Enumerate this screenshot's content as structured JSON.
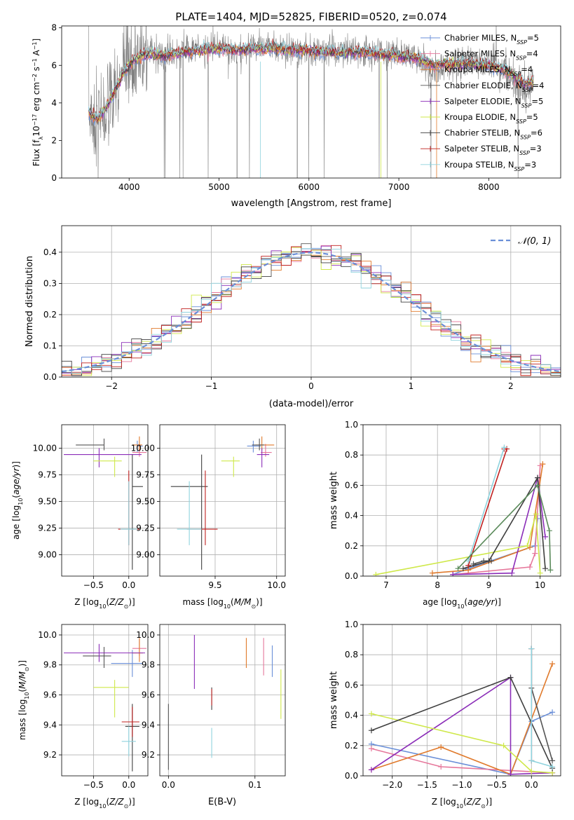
{
  "figure_title": "PLATE=1404, MJD=52825, FIBERID=0520, z=0.074",
  "colors": {
    "Chabrier MILES": "#6a8fd8",
    "Salpeter MILES": "#e6779b",
    "Kroupa MILES": "#e07a2c",
    "Chabrier ELODIE": "#555555",
    "Salpeter ELODIE": "#8b2db8",
    "Kroupa ELODIE": "#cfe84a",
    "Chabrier STELIB": "#3f3f3f",
    "Salpeter STELIB": "#c0201f",
    "Kroupa STELIB": "#8fd3de",
    "mass_weight_extra": "#5a8a5a"
  },
  "chart_data": [
    {
      "id": "spectrum",
      "type": "line",
      "xlabel": "wavelength [Angstrom, rest frame]",
      "ylabel": "Flux [f_λ 10^-17 erg cm^-2 s^-1 A^-1]",
      "xlim": [
        3250,
        8800
      ],
      "ylim": [
        0,
        8.1
      ],
      "xticks": [
        4000,
        5000,
        6000,
        7000,
        8000
      ],
      "yticks": [
        0,
        2,
        4,
        6,
        8
      ],
      "grid": false,
      "legend_position": "right",
      "legend": [
        {
          "name": "Chabrier MILES",
          "nssp": "5"
        },
        {
          "name": "Salpeter MILES",
          "nssp": "4"
        },
        {
          "name": "Kroupa MILES",
          "nssp": "4"
        },
        {
          "name": "Chabrier ELODIE",
          "nssp": "4"
        },
        {
          "name": "Salpeter ELODIE",
          "nssp": "5"
        },
        {
          "name": "Kroupa ELODIE",
          "nssp": "5"
        },
        {
          "name": "Chabrier STELIB",
          "nssp": "6"
        },
        {
          "name": "Salpeter STELIB",
          "nssp": "3"
        },
        {
          "name": "Kroupa STELIB",
          "nssp": "3"
        }
      ],
      "data_continuum": {
        "x": [
          3550,
          3650,
          3750,
          3850,
          3950,
          4050,
          4200,
          4400,
          4600,
          4800,
          5000,
          5200,
          5400,
          5600,
          5800,
          6000,
          6200,
          6400,
          6600,
          6800,
          7000,
          7200,
          7400,
          7600,
          7800,
          8000,
          8200,
          8400,
          8500
        ],
        "y": [
          3.4,
          3.0,
          3.6,
          4.6,
          5.6,
          6.2,
          6.7,
          6.4,
          6.8,
          6.9,
          7.0,
          6.8,
          7.0,
          7.0,
          6.8,
          6.9,
          6.8,
          6.7,
          6.8,
          6.6,
          6.6,
          6.4,
          5.6,
          6.0,
          6.2,
          6.0,
          5.6,
          4.8,
          5.0
        ]
      },
      "model_continuum": {
        "x": [
          3550,
          3650,
          3750,
          3850,
          3950,
          4050,
          4200,
          4400,
          4600,
          4800,
          5000,
          5200,
          5400,
          5600,
          5800,
          6000,
          6200,
          6400,
          6600,
          6800,
          7000,
          7200,
          7400,
          7600,
          7800,
          8000,
          8200,
          8400,
          8500
        ],
        "y": [
          3.5,
          3.1,
          3.8,
          4.7,
          5.7,
          6.3,
          6.6,
          6.5,
          6.7,
          6.8,
          6.9,
          6.8,
          6.9,
          6.9,
          6.8,
          6.8,
          6.7,
          6.7,
          6.7,
          6.6,
          6.5,
          6.4,
          6.0,
          6.1,
          6.1,
          6.0,
          5.7,
          5.0,
          5.1
        ]
      }
    },
    {
      "id": "residuals",
      "type": "histogram",
      "xlabel": "(data-model)/error",
      "ylabel": "Normed distribution",
      "xlim": [
        -2.5,
        2.5
      ],
      "ylim": [
        0,
        0.485
      ],
      "xticks": [
        -2,
        -1,
        0,
        1,
        2
      ],
      "yticks": [
        0.0,
        0.1,
        0.2,
        0.3,
        0.4
      ],
      "grid": true,
      "legend_label": "N(0, 1)",
      "bin_width": 0.1,
      "gaussian": {
        "mean": 0,
        "sigma": 1
      }
    },
    {
      "id": "age_vs_Z",
      "type": "errorbar",
      "xlabel": "Z [log10(Z/Z⊙)]",
      "ylabel": "age [log10(age/yr)]",
      "xlim": [
        -0.95,
        0.27
      ],
      "ylim": [
        8.8,
        10.22
      ],
      "xticks": [
        -0.5,
        0.0
      ],
      "yticks": [
        9.0,
        9.25,
        9.5,
        9.75,
        10.0
      ],
      "points": [
        {
          "x": 0.12,
          "y": 10.02,
          "xerr": [
            0.0,
            0.08
          ],
          "yerr": [
            0.06,
            0.05
          ]
        },
        {
          "x": 0.15,
          "y": 9.96,
          "xerr": [
            0.1,
            0.1
          ],
          "yerr": [
            0.04,
            0.08
          ]
        },
        {
          "x": 0.15,
          "y": 10.03,
          "xerr": [
            0.1,
            0.04
          ],
          "yerr": [
            0.05,
            0.08
          ]
        },
        {
          "x": -0.35,
          "y": 10.03,
          "xerr": [
            0.4,
            0.0
          ],
          "yerr": [
            0.05,
            0.06
          ]
        },
        {
          "x": -0.42,
          "y": 9.94,
          "xerr": [
            0.5,
            0.6
          ],
          "yerr": [
            0.12,
            0.06
          ]
        },
        {
          "x": -0.2,
          "y": 9.88,
          "xerr": [
            0.3,
            0.1
          ],
          "yerr": [
            0.15,
            0.04
          ]
        },
        {
          "x": 0.05,
          "y": 9.64,
          "xerr": [
            0.0,
            0.15
          ],
          "yerr": [
            0.78,
            0.3
          ]
        },
        {
          "x": 0.0,
          "y": 9.24,
          "xerr": [
            0.15,
            0.15
          ],
          "yerr": [
            0.15,
            0.55
          ]
        },
        {
          "x": 0.0,
          "y": 9.24,
          "xerr": [
            0.12,
            0.12
          ],
          "yerr": [
            0.15,
            0.45
          ]
        }
      ]
    },
    {
      "id": "age_vs_mass",
      "type": "errorbar",
      "xlabel": "mass [log10(M/M⊙)]",
      "ylabel": "",
      "xlim": [
        9.05,
        10.07
      ],
      "ylim": [
        8.8,
        10.22
      ],
      "xticks": [
        9.5,
        10.0
      ],
      "yticks": [
        9.0,
        9.25,
        9.5,
        9.75,
        10.0
      ],
      "points": [
        {
          "x": 9.81,
          "y": 10.02,
          "xerr": [
            0.05,
            0.06
          ],
          "yerr": [
            0.06,
            0.05
          ]
        },
        {
          "x": 9.91,
          "y": 9.96,
          "xerr": [
            0.04,
            0.05
          ],
          "yerr": [
            0.04,
            0.08
          ]
        },
        {
          "x": 9.88,
          "y": 10.03,
          "xerr": [
            0.05,
            0.1
          ],
          "yerr": [
            0.05,
            0.08
          ]
        },
        {
          "x": 9.86,
          "y": 10.03,
          "xerr": [
            0.06,
            0.04
          ],
          "yerr": [
            0.05,
            0.06
          ]
        },
        {
          "x": 9.88,
          "y": 9.94,
          "xerr": [
            0.04,
            0.06
          ],
          "yerr": [
            0.12,
            0.06
          ]
        },
        {
          "x": 9.65,
          "y": 9.88,
          "xerr": [
            0.1,
            0.05
          ],
          "yerr": [
            0.15,
            0.04
          ]
        },
        {
          "x": 9.39,
          "y": 9.64,
          "xerr": [
            0.25,
            0.05
          ],
          "yerr": [
            0.78,
            0.3
          ]
        },
        {
          "x": 9.42,
          "y": 9.24,
          "xerr": [
            0.15,
            0.1
          ],
          "yerr": [
            0.15,
            0.55
          ]
        },
        {
          "x": 9.29,
          "y": 9.24,
          "xerr": [
            0.1,
            0.1
          ],
          "yerr": [
            0.15,
            0.45
          ]
        }
      ]
    },
    {
      "id": "massweight_vs_age",
      "type": "line",
      "xlabel": "age [log10(age/yr)]",
      "ylabel": "mass weight",
      "xlim": [
        6.55,
        10.4
      ],
      "ylim": [
        0,
        1.0
      ],
      "xticks": [
        7,
        8,
        9,
        10
      ],
      "yticks": [
        0.0,
        0.2,
        0.4,
        0.6,
        0.8,
        1.0
      ],
      "grid": true,
      "series": [
        {
          "name": "Chabrier MILES",
          "x": [
            8.3,
            8.6,
            9.9,
            9.95
          ],
          "y": [
            0.01,
            0.05,
            0.2,
            0.38
          ]
        },
        {
          "name": "Salpeter MILES",
          "x": [
            8.3,
            9.8,
            9.9,
            10.0
          ],
          "y": [
            0.01,
            0.06,
            0.15,
            0.73
          ]
        },
        {
          "name": "Kroupa MILES",
          "x": [
            7.9,
            8.6,
            9.8,
            10.05
          ],
          "y": [
            0.02,
            0.04,
            0.19,
            0.74
          ]
        },
        {
          "name": "Chabrier ELODIE",
          "x": [
            8.7,
            8.9,
            9.05
          ],
          "y": [
            0.08,
            0.1,
            0.1
          ]
        },
        {
          "name": "Salpeter ELODIE",
          "x": [
            8.3,
            9.45,
            9.95,
            10.1
          ],
          "y": [
            0.01,
            0.02,
            0.65,
            0.26
          ]
        },
        {
          "name": "Kroupa ELODIE",
          "x": [
            6.8,
            9.75,
            9.92,
            10.0
          ],
          "y": [
            0.01,
            0.2,
            0.41,
            0.02
          ]
        },
        {
          "name": "Chabrier STELIB",
          "x": [
            8.5,
            9.0,
            9.95,
            10.1
          ],
          "y": [
            0.05,
            0.1,
            0.65,
            0.05
          ]
        },
        {
          "name": "Salpeter STELIB",
          "x": [
            8.6,
            9.35,
            9.3
          ],
          "y": [
            0.07,
            0.84,
            0.84
          ]
        },
        {
          "name": "Kroupa STELIB",
          "x": [
            8.6,
            9.3
          ],
          "y": [
            0.1,
            0.85
          ]
        },
        {
          "name": "Chabrier STELIB extra",
          "x": [
            8.4,
            9.95,
            10.18,
            10.2
          ],
          "y": [
            0.05,
            0.6,
            0.3,
            0.04
          ]
        }
      ]
    },
    {
      "id": "mass_vs_Z",
      "type": "errorbar",
      "xlabel": "Z [log10(Z/Z⊙)]",
      "ylabel": "mass [log10(M/M⊙)]",
      "xlim": [
        -0.95,
        0.27
      ],
      "ylim": [
        9.06,
        10.07
      ],
      "xticks": [
        -0.5,
        0.0
      ],
      "yticks": [
        9.2,
        9.4,
        9.6,
        9.8,
        10.0
      ],
      "points": [
        {
          "x": 0.05,
          "y": 9.81,
          "xerr": [
            0.3,
            0.15
          ],
          "yerr": [
            0.09,
            0.09
          ]
        },
        {
          "x": 0.15,
          "y": 9.91,
          "xerr": [
            0.1,
            0.1
          ],
          "yerr": [
            0.05,
            0.06
          ]
        },
        {
          "x": 0.15,
          "y": 9.88,
          "xerr": [
            0.1,
            0.05
          ],
          "yerr": [
            0.06,
            0.1
          ]
        },
        {
          "x": -0.35,
          "y": 9.86,
          "xerr": [
            0.3,
            0.1
          ],
          "yerr": [
            0.08,
            0.06
          ]
        },
        {
          "x": -0.42,
          "y": 9.88,
          "xerr": [
            0.5,
            0.65
          ],
          "yerr": [
            0.06,
            0.06
          ]
        },
        {
          "x": -0.2,
          "y": 9.65,
          "xerr": [
            0.3,
            0.2
          ],
          "yerr": [
            0.2,
            0.05
          ]
        },
        {
          "x": 0.05,
          "y": 9.39,
          "xerr": [
            0.1,
            0.1
          ],
          "yerr": [
            0.3,
            0.15
          ]
        },
        {
          "x": 0.05,
          "y": 9.42,
          "xerr": [
            0.15,
            0.1
          ],
          "yerr": [
            0.1,
            0.1
          ]
        },
        {
          "x": 0.0,
          "y": 9.29,
          "xerr": [
            0.1,
            0.1
          ],
          "yerr": [
            0.1,
            0.1
          ]
        }
      ]
    },
    {
      "id": "mass_vs_ebv",
      "type": "errorbar",
      "xlabel": "E(B-V)",
      "ylabel": "",
      "xlim": [
        -0.01,
        0.135
      ],
      "ylim": [
        9.06,
        10.07
      ],
      "xticks": [
        0.0,
        0.1
      ],
      "yticks": [
        9.2,
        9.4,
        9.6,
        9.8,
        10.0
      ],
      "points": [
        {
          "x": 0.12,
          "y": 9.81,
          "xerr": [
            0,
            0
          ],
          "yerr": [
            0.09,
            0.12
          ]
        },
        {
          "x": 0.11,
          "y": 9.85,
          "xerr": [
            0,
            0
          ],
          "yerr": [
            0.12,
            0.13
          ]
        },
        {
          "x": 0.09,
          "y": 9.88,
          "xerr": [
            0,
            0
          ],
          "yerr": [
            0.1,
            0.1
          ]
        },
        {
          "x": 0.0,
          "y": 9.3,
          "xerr": [
            0,
            0
          ],
          "yerr": [
            0.2,
            0.24
          ]
        },
        {
          "x": 0.03,
          "y": 9.83,
          "xerr": [
            0,
            0
          ],
          "yerr": [
            0.19,
            0.17
          ]
        },
        {
          "x": 0.13,
          "y": 9.6,
          "xerr": [
            0,
            0
          ],
          "yerr": [
            0.16,
            0.17
          ]
        },
        {
          "x": 0.05,
          "y": 9.55,
          "xerr": [
            0,
            0
          ],
          "yerr": [
            0.05,
            0.1
          ]
        },
        {
          "x": 0.05,
          "y": 9.58,
          "xerr": [
            0,
            0
          ],
          "yerr": [
            0.05,
            0.06
          ]
        },
        {
          "x": 0.05,
          "y": 9.3,
          "xerr": [
            0,
            0
          ],
          "yerr": [
            0.12,
            0.08
          ]
        }
      ]
    },
    {
      "id": "massweight_vs_Z",
      "type": "line",
      "xlabel": "Z [log10(Z/Z⊙)]",
      "ylabel": "mass weight",
      "xlim": [
        -2.42,
        0.42
      ],
      "ylim": [
        0,
        1.0
      ],
      "xticks": [
        -2.0,
        -1.5,
        -1.0,
        -0.5,
        0.0
      ],
      "yticks": [
        0.0,
        0.2,
        0.4,
        0.6,
        0.8,
        1.0
      ],
      "grid": true,
      "series": [
        {
          "name": "Chabrier MILES",
          "x": [
            -2.3,
            -0.3,
            0.0,
            0.3
          ],
          "y": [
            0.21,
            0.01,
            0.36,
            0.42
          ]
        },
        {
          "name": "Salpeter MILES",
          "x": [
            -2.3,
            -1.3,
            0.3
          ],
          "y": [
            0.18,
            0.06,
            0.02
          ]
        },
        {
          "name": "Kroupa MILES",
          "x": [
            -2.3,
            -1.3,
            -0.3,
            0.3
          ],
          "y": [
            0.04,
            0.19,
            0.01,
            0.74
          ]
        },
        {
          "name": "Chabrier ELODIE",
          "x": [
            0.0,
            0.0,
            0.3
          ],
          "y": [
            0.84,
            0.58,
            0.1
          ]
        },
        {
          "name": "Salpeter ELODIE",
          "x": [
            -2.3,
            -0.3,
            -0.3,
            0.3
          ],
          "y": [
            0.04,
            0.65,
            0.01,
            0.02
          ]
        },
        {
          "name": "Kroupa ELODIE",
          "x": [
            -2.3,
            -0.4,
            0.0,
            0.3
          ],
          "y": [
            0.41,
            0.2,
            0.03,
            0.02
          ]
        },
        {
          "name": "Chabrier STELIB",
          "x": [
            -2.3,
            -0.3,
            0.3
          ],
          "y": [
            0.3,
            0.65,
            0.05
          ]
        },
        {
          "name": "Salpeter STELIB",
          "x": [
            0.0,
            0.0
          ],
          "y": [
            0.84,
            0.1
          ]
        },
        {
          "name": "Kroupa STELIB",
          "x": [
            0.0,
            0.0,
            0.3
          ],
          "y": [
            0.84,
            0.1,
            0.06
          ]
        }
      ]
    }
  ]
}
